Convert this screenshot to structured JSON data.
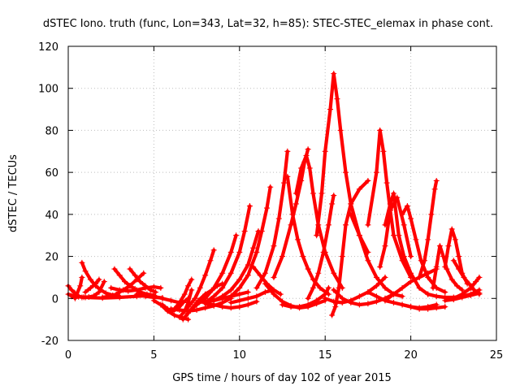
{
  "chart_data": {
    "type": "scatter",
    "title": "dSTEC Iono. truth (func, Lon=343, Lat=32, h=85): STEC-STEC_elemax in phase cont.",
    "xlabel": "GPS time / hours of day 102 of year 2015",
    "ylabel": "dSTEC  / TECUs",
    "xlim": [
      0,
      25
    ],
    "ylim": [
      -20,
      120
    ],
    "x_ticks": [
      "0",
      "5",
      "10",
      "15",
      "20",
      "25"
    ],
    "y_ticks": [
      "-20",
      "0",
      "20",
      "40",
      "60",
      "80",
      "100",
      "120"
    ],
    "grid": true,
    "marker": "+",
    "color": "#ff0000",
    "series": [
      {
        "x": [
          0.0,
          0.2,
          0.4,
          0.6,
          0.8
        ],
        "y": [
          6,
          4,
          2.5,
          1.2,
          0.5
        ]
      },
      {
        "x": [
          0.0,
          0.3,
          0.6,
          0.9,
          1.2,
          1.5,
          1.8,
          2.1
        ],
        "y": [
          2,
          1.2,
          0.8,
          0.6,
          0.7,
          1.2,
          3,
          8
        ]
      },
      {
        "x": [
          0.4,
          0.7,
          0.8
        ],
        "y": [
          0,
          6,
          10
        ]
      },
      {
        "x": [
          0.8,
          1.0,
          1.3,
          1.6,
          1.9,
          2.2,
          2.6,
          3.0
        ],
        "y": [
          17,
          13,
          9,
          6,
          4,
          2.5,
          1.5,
          1
        ]
      },
      {
        "x": [
          1.0,
          1.3,
          1.6,
          1.8
        ],
        "y": [
          3,
          5,
          7,
          9
        ]
      },
      {
        "x": [
          0.2,
          1.0,
          2.0,
          3.0,
          4.0,
          5.0
        ],
        "y": [
          1,
          0.5,
          0.2,
          0.5,
          1,
          1.5
        ]
      },
      {
        "x": [
          2.0,
          2.4,
          2.8,
          3.2,
          3.6,
          4.0,
          4.4
        ],
        "y": [
          0.5,
          1,
          2,
          4,
          6,
          9,
          12
        ]
      },
      {
        "x": [
          2.7,
          3.0,
          3.3,
          3.6,
          3.9,
          4.2,
          4.6,
          5.0
        ],
        "y": [
          14,
          11,
          8,
          6,
          4.5,
          3,
          2,
          1.5
        ]
      },
      {
        "x": [
          3.6,
          3.9,
          4.2,
          4.5,
          4.8,
          5.1
        ],
        "y": [
          14,
          11,
          8,
          6,
          4,
          3
        ]
      },
      {
        "x": [
          2.5,
          3.0,
          3.5,
          4.0,
          4.5,
          5.0,
          5.4
        ],
        "y": [
          5,
          4,
          3.5,
          4,
          5,
          5.5,
          5
        ]
      },
      {
        "x": [
          4.0,
          4.5,
          5.0,
          5.5
        ],
        "y": [
          2,
          1,
          0.5,
          0.3
        ]
      },
      {
        "x": [
          5.0,
          5.5,
          6.0,
          6.5
        ],
        "y": [
          1,
          0,
          -1,
          -2
        ]
      },
      {
        "x": [
          5.0,
          5.4,
          5.8,
          6.2,
          6.6,
          7.0
        ],
        "y": [
          -1,
          -3,
          -6,
          -8,
          -9,
          -10
        ]
      },
      {
        "x": [
          5.5,
          5.8,
          6.1,
          6.4,
          6.7,
          7.0
        ],
        "y": [
          -3,
          -5,
          -6,
          -5,
          -2,
          0
        ]
      },
      {
        "x": [
          6.5,
          6.8,
          7.0,
          7.2
        ],
        "y": [
          -9,
          -6,
          -2,
          4
        ]
      },
      {
        "x": [
          6.7,
          7.0,
          7.3,
          7.6,
          8.0,
          8.4
        ],
        "y": [
          -10,
          -7,
          -4,
          -1,
          2,
          4
        ]
      },
      {
        "x": [
          6.2,
          6.5,
          6.8,
          7.0,
          7.2
        ],
        "y": [
          -5,
          -2,
          2,
          6,
          9
        ]
      },
      {
        "x": [
          6.0,
          6.5,
          7.0,
          7.5,
          8.0,
          8.5,
          9.0,
          9.5
        ],
        "y": [
          -5,
          -5.5,
          -6,
          -5.5,
          -4.5,
          -3.5,
          -2,
          0
        ]
      },
      {
        "x": [
          6.8,
          7.1,
          7.4,
          7.7,
          8.0,
          8.3,
          8.5
        ],
        "y": [
          -6,
          -3,
          0,
          5,
          11,
          18,
          23
        ]
      },
      {
        "x": [
          7.2,
          7.5,
          7.8,
          8.1,
          8.4,
          8.7,
          9.0
        ],
        "y": [
          -5,
          -3,
          -1,
          1.5,
          4,
          6,
          7
        ]
      },
      {
        "x": [
          7.5,
          8.0,
          8.5,
          9.0,
          9.5,
          9.8
        ],
        "y": [
          -3,
          0,
          5,
          12,
          22,
          30
        ]
      },
      {
        "x": [
          8.0,
          8.5,
          9.0,
          9.5,
          10.0,
          10.3,
          10.6
        ],
        "y": [
          -2,
          1,
          5,
          12,
          22,
          32,
          44
        ]
      },
      {
        "x": [
          7.5,
          8.0,
          8.5,
          9.0,
          9.5,
          10.0,
          10.5
        ],
        "y": [
          -2,
          -1.5,
          -1,
          0,
          1,
          2,
          3
        ]
      },
      {
        "x": [
          8.0,
          8.5,
          9.0,
          9.5,
          10.0,
          10.5,
          11.0
        ],
        "y": [
          -2.5,
          -3,
          -4,
          -4.5,
          -4,
          -3,
          -1.5
        ]
      },
      {
        "x": [
          8.5,
          9.0,
          9.5,
          10.0,
          10.5,
          10.8,
          11.1
        ],
        "y": [
          -1,
          1,
          4,
          9,
          16,
          24,
          32
        ]
      },
      {
        "x": [
          9.5,
          10.0,
          10.5,
          11.0,
          11.3,
          11.6,
          11.8
        ],
        "y": [
          1,
          5,
          11,
          22,
          32,
          43,
          53
        ]
      },
      {
        "x": [
          9.5,
          10.0,
          10.5,
          11.0,
          11.5,
          12.0
        ],
        "y": [
          -2,
          -1,
          0,
          1,
          3,
          4
        ]
      },
      {
        "x": [
          11.0,
          11.5,
          12.0,
          12.3,
          12.6,
          12.8
        ],
        "y": [
          5,
          12,
          25,
          38,
          55,
          70
        ]
      },
      {
        "x": [
          10.8,
          11.2,
          11.6,
          12.0,
          12.4
        ],
        "y": [
          15,
          11,
          7,
          4,
          2
        ]
      },
      {
        "x": [
          12.0,
          12.5,
          13.0,
          13.3,
          13.6,
          13.8,
          14.0
        ],
        "y": [
          10,
          20,
          35,
          45,
          56,
          65,
          71
        ]
      },
      {
        "x": [
          12.8,
          13.1,
          13.4,
          13.7,
          14.0,
          14.3,
          14.7,
          15.2
        ],
        "y": [
          58,
          40,
          28,
          20,
          14,
          9,
          5,
          2
        ]
      },
      {
        "x": [
          11.5,
          12.0,
          12.5,
          13.0,
          13.5,
          14.0,
          14.5,
          15.0
        ],
        "y": [
          7,
          2,
          -1.5,
          -3.5,
          -4.5,
          -4,
          -2.5,
          -1
        ]
      },
      {
        "x": [
          12.5,
          13.0,
          13.5,
          14.0,
          14.5,
          15.0,
          15.2
        ],
        "y": [
          -3,
          -4,
          -4,
          -3,
          -1,
          2,
          5
        ]
      },
      {
        "x": [
          13.3,
          13.6,
          13.9,
          14.1,
          14.3,
          14.6,
          15.0,
          15.5,
          16.0
        ],
        "y": [
          50,
          62,
          68,
          62,
          50,
          35,
          22,
          12,
          5
        ]
      },
      {
        "x": [
          14.0,
          14.3,
          14.6,
          14.9,
          15.2,
          15.4,
          15.5
        ],
        "y": [
          0,
          5,
          12,
          22,
          35,
          45,
          49
        ]
      },
      {
        "x": [
          14.5,
          14.8,
          15.0,
          15.3,
          15.5,
          15.7,
          15.9,
          16.2,
          16.5,
          17.0,
          17.5
        ],
        "y": [
          30,
          50,
          70,
          90,
          107,
          95,
          80,
          60,
          45,
          30,
          22
        ]
      },
      {
        "x": [
          15.4,
          15.6,
          15.8,
          16.0,
          16.2,
          16.5,
          17.0,
          17.5
        ],
        "y": [
          -8,
          -4,
          5,
          20,
          35,
          45,
          52,
          56
        ]
      },
      {
        "x": [
          15.0,
          15.5,
          16.0,
          16.5,
          17.0,
          17.5,
          18.0,
          18.5
        ],
        "y": [
          0,
          -1.5,
          -2,
          -1,
          1,
          3,
          6,
          10
        ]
      },
      {
        "x": [
          15.5,
          16.0,
          16.5,
          17.0,
          17.5,
          18.0,
          18.5,
          19.0
        ],
        "y": [
          4,
          0,
          -2,
          -3,
          -2.5,
          -1.5,
          0,
          2
        ]
      },
      {
        "x": [
          16.5,
          17.0,
          17.5,
          18.0,
          18.5,
          19.0,
          19.5
        ],
        "y": [
          40,
          30,
          18,
          10,
          5,
          2,
          1
        ]
      },
      {
        "x": [
          17.5,
          18.0,
          18.2,
          18.4,
          18.6,
          18.8,
          19.0,
          19.5,
          20.0
        ],
        "y": [
          35,
          60,
          80,
          70,
          55,
          42,
          30,
          18,
          10
        ]
      },
      {
        "x": [
          18.2,
          18.5,
          18.8,
          19.2,
          19.6,
          20.0
        ],
        "y": [
          15,
          25,
          42,
          48,
          35,
          20
        ]
      },
      {
        "x": [
          18.5,
          18.8,
          19.0,
          19.3,
          19.6,
          20.0,
          20.5,
          21.0
        ],
        "y": [
          35,
          45,
          50,
          30,
          20,
          12,
          5,
          2
        ]
      },
      {
        "x": [
          17.5,
          18.0,
          18.5,
          19.0,
          19.5,
          20.0,
          20.5,
          21.0,
          21.5
        ],
        "y": [
          3,
          1,
          -1,
          -2,
          -3,
          -4,
          -4.5,
          -4,
          -3
        ]
      },
      {
        "x": [
          18.5,
          19.0,
          19.5,
          20.0,
          20.5,
          21.0,
          21.5
        ],
        "y": [
          -1,
          2,
          5,
          8,
          10,
          12,
          14
        ]
      },
      {
        "x": [
          19.5,
          19.8,
          20.0,
          20.3,
          20.6,
          21.0,
          21.5,
          22.0
        ],
        "y": [
          40,
          44,
          38,
          28,
          18,
          10,
          5,
          3
        ]
      },
      {
        "x": [
          20.5,
          20.8,
          21.0,
          21.2,
          21.4,
          21.5
        ],
        "y": [
          10,
          18,
          28,
          40,
          52,
          56
        ]
      },
      {
        "x": [
          19.5,
          20.0,
          20.5,
          21.0,
          21.5,
          22.0
        ],
        "y": [
          -3,
          -4,
          -5,
          -5,
          -4.5,
          -4
        ]
      },
      {
        "x": [
          21.3,
          21.5,
          21.7,
          21.9,
          22.1,
          22.4,
          22.7,
          23.0
        ],
        "y": [
          5,
          15,
          25,
          20,
          14,
          9,
          6,
          4
        ]
      },
      {
        "x": [
          22.0,
          22.2,
          22.4,
          22.6,
          22.8,
          23.0,
          23.3
        ],
        "y": [
          15,
          25,
          33,
          28,
          20,
          12,
          7
        ]
      },
      {
        "x": [
          22.5,
          22.8,
          23.1,
          23.4,
          23.7,
          24.0
        ],
        "y": [
          18,
          14,
          10,
          7,
          4,
          2
        ]
      },
      {
        "x": [
          21.0,
          21.5,
          22.0,
          22.5,
          23.0,
          23.5,
          24.0
        ],
        "y": [
          2,
          1,
          0.5,
          0.5,
          1,
          2,
          4
        ]
      },
      {
        "x": [
          22.5,
          23.0,
          23.5,
          23.8,
          24.0
        ],
        "y": [
          0,
          2,
          5,
          8,
          10
        ]
      },
      {
        "x": [
          22.0,
          22.5,
          23.0,
          23.5,
          24.0
        ],
        "y": [
          -1,
          -0.5,
          0.5,
          1.5,
          2.5
        ]
      }
    ]
  }
}
